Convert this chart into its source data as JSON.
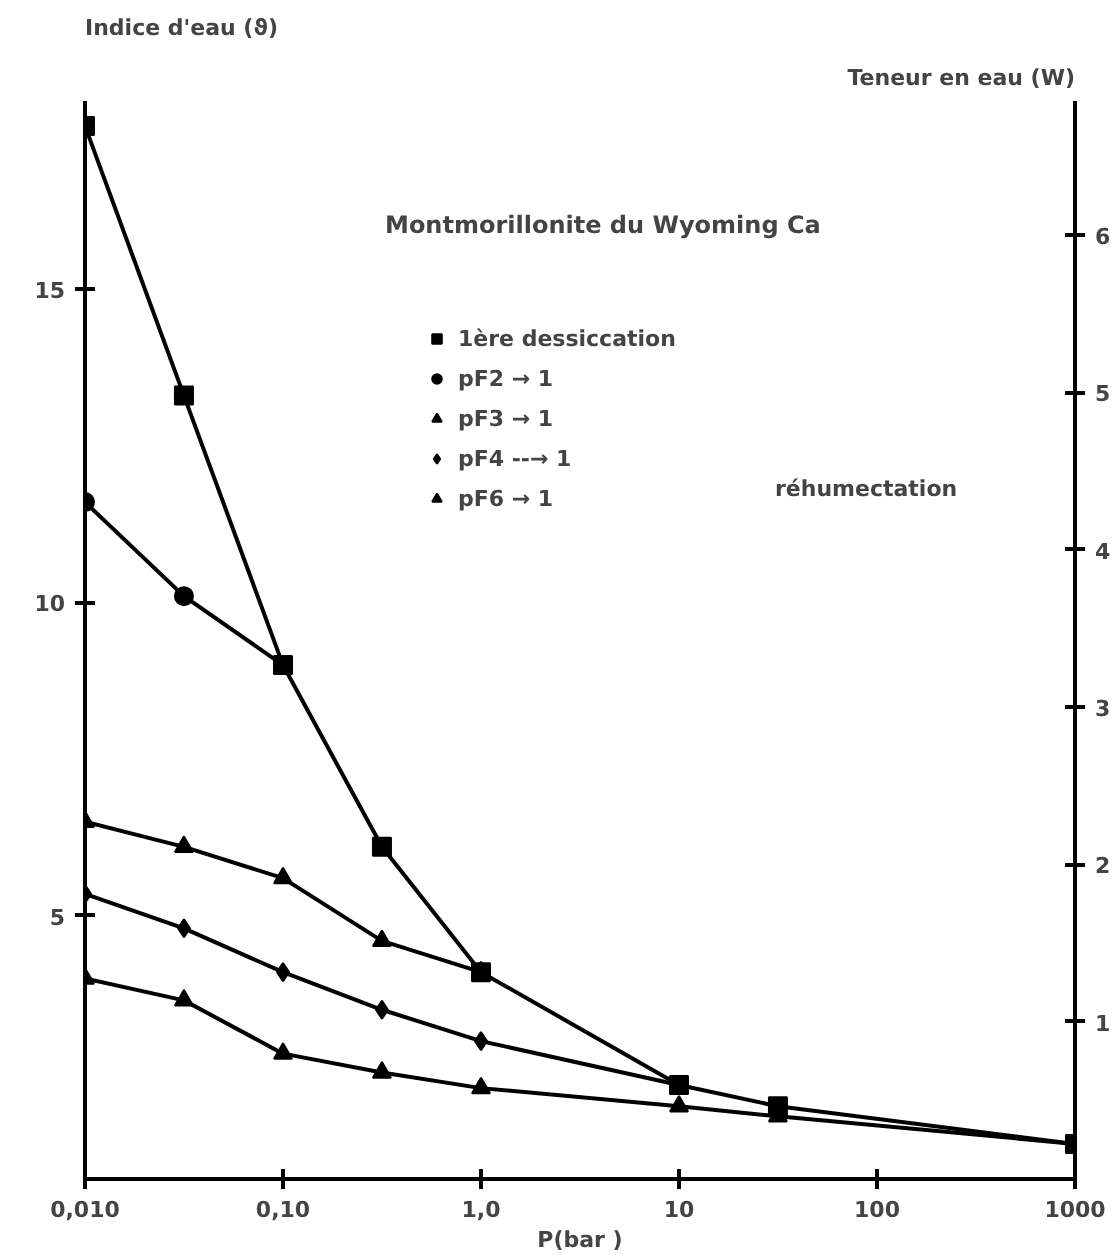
{
  "chart_data": {
    "type": "line",
    "title": "Montmorillonite du Wyoming Ca",
    "xlabel": "P(bar )",
    "ylabel": "Indice d'eau (ϑ)",
    "y2label": "Teneur en eau (W)",
    "log": "x",
    "grid": false,
    "legend": "top right",
    "line_style": "solid",
    "xlim": [
      0.01,
      1000
    ],
    "xticks": [
      {
        "value": 0.01,
        "label": "0,010"
      },
      {
        "value": 0.1,
        "label": "0,10"
      },
      {
        "value": 1,
        "label": "1,0"
      },
      10,
      100,
      1000
    ],
    "ylim": [
      0.8,
      18.0
    ],
    "yticks": [
      5,
      10,
      15
    ],
    "y2lim": [
      0,
      6.85
    ],
    "y2ticks": [
      1,
      2,
      3,
      4,
      5,
      6
    ],
    "series": [
      {
        "name": "1ère dessiccation",
        "color": "#000000",
        "marker": "square",
        "x": [
          0.01,
          0.0316,
          0.1,
          0.316,
          1,
          10,
          31.6,
          1000
        ],
        "values": [
          17.6,
          13.3,
          9.0,
          6.1,
          4.1,
          2.3,
          1.96,
          1.36
        ]
      },
      {
        "name": "pF2 → 1",
        "color": "#000000",
        "marker": "circle",
        "x": [
          0.01,
          0.0316,
          0.1
        ],
        "values": [
          11.6,
          10.1,
          9.0
        ]
      },
      {
        "name": "pF3 → 1",
        "color": "#000000",
        "marker": "triangle",
        "x": [
          0.01,
          0.0316,
          0.1,
          0.316,
          1
        ],
        "values": [
          6.5,
          6.1,
          5.6,
          4.6,
          4.1
        ]
      },
      {
        "name": "pF4 --→ 1",
        "color": "#000000",
        "marker": "diamond",
        "x": [
          0.01,
          0.0316,
          0.1,
          0.316,
          1,
          10
        ],
        "values": [
          5.35,
          4.8,
          4.1,
          3.5,
          3.0,
          2.3
        ]
      },
      {
        "name": "pF6 → 1",
        "color": "#000000",
        "marker": "triangle",
        "x": [
          0.01,
          0.0316,
          0.1,
          0.316,
          1,
          10,
          31.6,
          1000
        ],
        "values": [
          4.0,
          3.65,
          2.8,
          2.5,
          2.25,
          1.96,
          1.8,
          1.36
        ]
      }
    ],
    "annotations": [
      "réhumectation"
    ]
  }
}
